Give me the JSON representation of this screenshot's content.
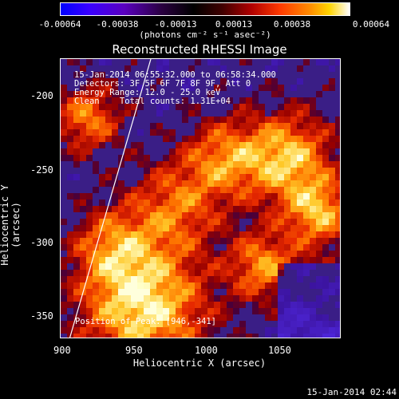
{
  "colorbar": {
    "ticks": [
      "-0.00064",
      "-0.00038",
      "-0.00013",
      "0.00013",
      "0.00038",
      "0.00064"
    ],
    "units": "(photons cm⁻² s⁻¹ asec⁻²)"
  },
  "title": "Reconstructed RHESSI Image",
  "info": {
    "line1": "15-Jan-2014 06:55:32.000 to 06:58:34.000",
    "line2": "Detectors: 3F 5F 6F 7F 8F 9F, Att 0",
    "line3": "Energy Range: 12.0 - 25.0 keV",
    "line4": "Clean    Total counts: 1.31E+04",
    "position": "Position of Peak: [946,-341]"
  },
  "axes": {
    "xlabel": "Heliocentric X (arcsec)",
    "ylabel": "Heliocentric Y (arcsec)",
    "xticks": [
      "900",
      "950",
      "1000",
      "1050"
    ],
    "yticks": [
      "-200",
      "-250",
      "-300",
      "-350"
    ]
  },
  "footer": {
    "timestamp": "15-Jan-2014 02:44"
  },
  "chart_data": {
    "type": "heatmap",
    "title": "Reconstructed RHESSI Image",
    "xlabel": "Heliocentric X (arcsec)",
    "ylabel": "Heliocentric Y (arcsec)",
    "xlim": [
      898,
      1088
    ],
    "ylim": [
      -371,
      -181
    ],
    "colorbar_range": [
      -0.00064,
      0.00064
    ],
    "peak_position": [
      946,
      -341
    ]
  }
}
